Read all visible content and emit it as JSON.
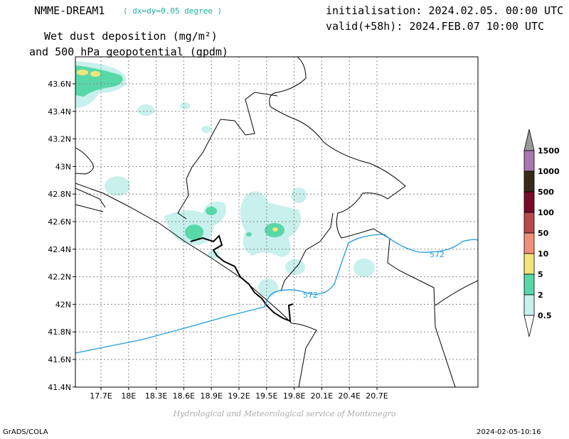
{
  "header": {
    "model": "NMME-DREAM1",
    "resolution": "( dx=dy=0.05 degree )",
    "init": "initialisation: 2024.02.05. 00:00 UTC",
    "valid": "valid(+58h): 2024.FEB.07 10:00 UTC",
    "variable_line1": "Wet dust deposition (mg/m²)",
    "variable_line2": "and 500 hPa geopotential (gpdm)"
  },
  "map": {
    "lon_ticks": [
      "17.7E",
      "18E",
      "18.3E",
      "18.6E",
      "18.9E",
      "19.2E",
      "19.5E",
      "19.8E",
      "20.1E",
      "20.4E",
      "20.7E"
    ],
    "lat_ticks": [
      "43.6N",
      "43.4N",
      "43.2N",
      "43N",
      "42.8N",
      "42.6N",
      "42.4N",
      "42.2N",
      "42N",
      "41.8N",
      "41.6N",
      "41.4N"
    ],
    "contour_labels": [
      "572",
      "572"
    ],
    "contour_color": "#1f9bde",
    "grid": true
  },
  "legend": {
    "levels": [
      "1500",
      "1000",
      "500",
      "100",
      "50",
      "10",
      "5",
      "2",
      "0.5"
    ],
    "colors": [
      "#9a9a9a",
      "#a778b0",
      "#3a2a1a",
      "#7a0a2a",
      "#b84a4a",
      "#f0907a",
      "#f5e47a",
      "#58d8a8",
      "#c8f0ec",
      "#ffffff"
    ]
  },
  "credit": "Hydrological and Meteorological service of Montenegro",
  "footer": {
    "left": "GrADS/COLA",
    "right": "2024-02-05-10:16"
  }
}
